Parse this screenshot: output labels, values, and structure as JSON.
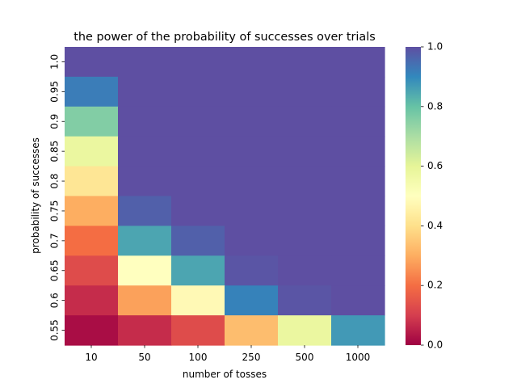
{
  "chart_data": {
    "type": "heatmap",
    "title": "the power of the probability of successes over trials",
    "xlabel": "number of tosses",
    "ylabel": "probability of successes",
    "x_categories": [
      "10",
      "50",
      "100",
      "250",
      "500",
      "1000"
    ],
    "y_categories": [
      "1.0",
      "0.95",
      "0.9",
      "0.85",
      "0.8",
      "0.75",
      "0.7",
      "0.65",
      "0.6",
      "0.55"
    ],
    "values": [
      [
        1.0,
        1.0,
        1.0,
        1.0,
        1.0,
        1.0
      ],
      [
        0.92,
        1.0,
        1.0,
        1.0,
        1.0,
        1.0
      ],
      [
        0.76,
        1.0,
        1.0,
        1.0,
        1.0,
        1.0
      ],
      [
        0.58,
        1.0,
        1.0,
        1.0,
        1.0,
        1.0
      ],
      [
        0.42,
        1.0,
        1.0,
        1.0,
        1.0,
        1.0
      ],
      [
        0.3,
        0.97,
        1.0,
        1.0,
        1.0,
        1.0
      ],
      [
        0.2,
        0.85,
        0.97,
        1.0,
        1.0,
        1.0
      ],
      [
        0.13,
        0.5,
        0.85,
        0.99,
        1.0,
        1.0
      ],
      [
        0.07,
        0.28,
        0.48,
        0.91,
        0.99,
        1.0
      ],
      [
        0.02,
        0.07,
        0.13,
        0.33,
        0.58,
        0.87
      ]
    ],
    "colorbar": {
      "range": [
        0.0,
        1.0
      ],
      "ticks": [
        "0.0",
        "0.2",
        "0.4",
        "0.6",
        "0.8",
        "1.0"
      ],
      "colormap": "Spectral"
    }
  }
}
